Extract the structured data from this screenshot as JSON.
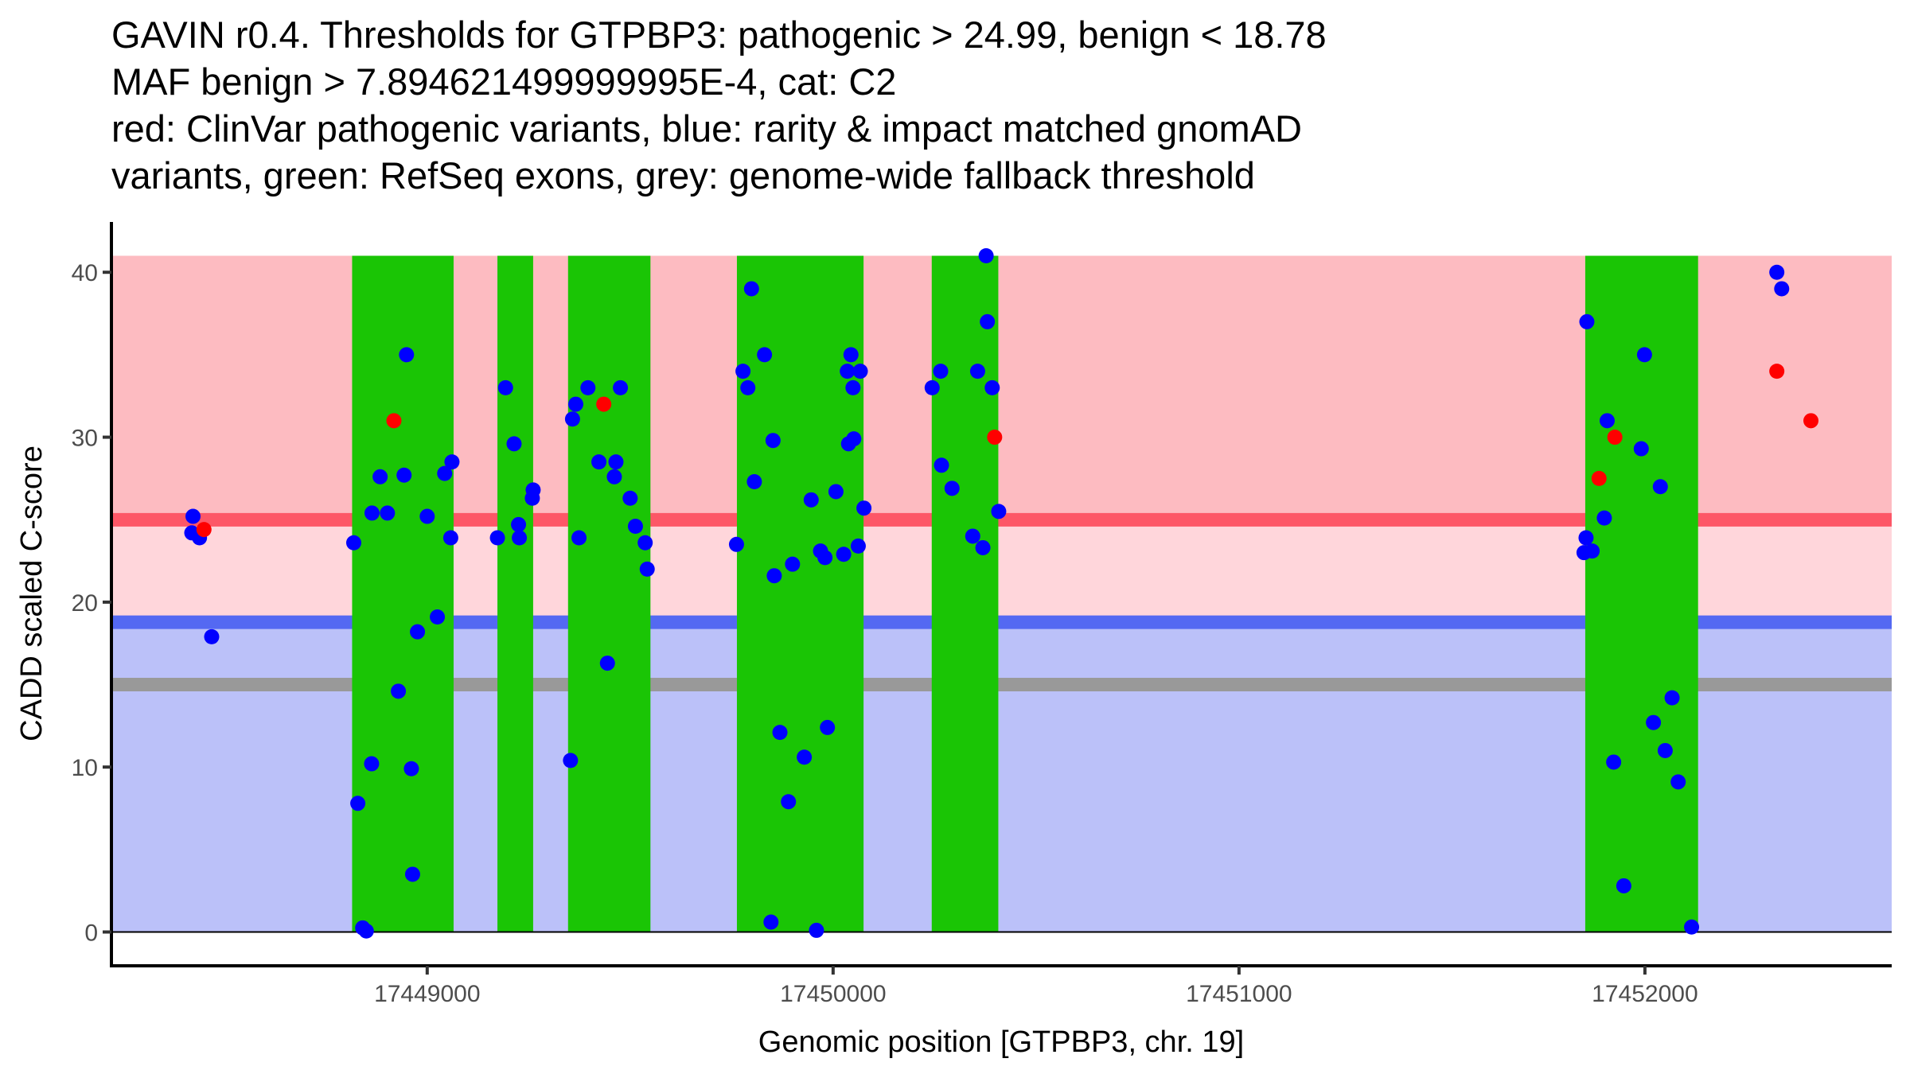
{
  "chart_data": {
    "type": "scatter",
    "title_lines": [
      "GAVIN r0.4. Thresholds for GTPBP3: pathogenic > 24.99, benign < 18.78",
      "MAF benign > 7.894621499999995E-4, cat: C2",
      "red: ClinVar pathogenic variants, blue: rarity & impact matched gnomAD",
      "variants, green: RefSeq exons, grey: genome-wide fallback threshold"
    ],
    "xlabel": "Genomic position [GTPBP3, chr. 19]",
    "ylabel": "CADD scaled C-score",
    "xlim": [
      17448222,
      17452608
    ],
    "ylim": [
      -2.05,
      43.05
    ],
    "x_ticks": [
      17449000,
      17450000,
      17451000,
      17452000
    ],
    "x_tick_labels": [
      "17449000",
      "17450000",
      "17451000",
      "17452000"
    ],
    "y_ticks": [
      0,
      10,
      20,
      30,
      40
    ],
    "y_tick_labels": [
      "0",
      "10",
      "20",
      "30",
      "40"
    ],
    "grid": false,
    "legend": "none",
    "thresholds": {
      "pathogenic": 24.99,
      "benign": 18.78,
      "genome_wide_fallback": 15,
      "band_max": 41,
      "band_min": 0
    },
    "colors": {
      "pathogenic_band": "#FDBBC1",
      "intermediate_band": "#FFD6DB",
      "benign_band": "#BBC1F9",
      "pathogenic_line": "#FD5767",
      "benign_line": "#5469F2",
      "fallback_line": "#999999",
      "exon": "#1AC505",
      "clinvar_point": "#FF0000",
      "gnomad_point": "#0000FF"
    },
    "exons": [
      {
        "start": 17448815,
        "end": 17449065
      },
      {
        "start": 17449173,
        "end": 17449261
      },
      {
        "start": 17449347,
        "end": 17449550
      },
      {
        "start": 17449763,
        "end": 17450075
      },
      {
        "start": 17450243,
        "end": 17450407
      },
      {
        "start": 17451853,
        "end": 17452131
      }
    ],
    "series": [
      {
        "name": "gnomAD (rarity & impact matched)",
        "color": "#0000FF",
        "points": [
          [
            17448423,
            25.2
          ],
          [
            17448420,
            24.2
          ],
          [
            17448439,
            23.9
          ],
          [
            17448469,
            17.9
          ],
          [
            17448819,
            23.6
          ],
          [
            17448829,
            7.8
          ],
          [
            17448841,
            0.25
          ],
          [
            17448850,
            0.06
          ],
          [
            17448863,
            10.2
          ],
          [
            17448864,
            25.4
          ],
          [
            17448884,
            27.6
          ],
          [
            17448902,
            25.4
          ],
          [
            17448929,
            14.6
          ],
          [
            17448943,
            27.7
          ],
          [
            17448949,
            35.0
          ],
          [
            17448961,
            9.9
          ],
          [
            17448964,
            3.5
          ],
          [
            17448976,
            18.2
          ],
          [
            17449000,
            25.2
          ],
          [
            17449025,
            19.1
          ],
          [
            17449043,
            27.8
          ],
          [
            17449061,
            28.5
          ],
          [
            17449058,
            23.9
          ],
          [
            17449173,
            23.9
          ],
          [
            17449193,
            33.0
          ],
          [
            17449214,
            29.6
          ],
          [
            17449225,
            24.7
          ],
          [
            17449227,
            23.9
          ],
          [
            17449261,
            26.8
          ],
          [
            17449259,
            26.3
          ],
          [
            17449353,
            10.4
          ],
          [
            17449358,
            31.1
          ],
          [
            17449366,
            32.0
          ],
          [
            17449374,
            23.9
          ],
          [
            17449396,
            33.0
          ],
          [
            17449423,
            28.5
          ],
          [
            17449444,
            16.3
          ],
          [
            17449461,
            27.6
          ],
          [
            17449465,
            28.5
          ],
          [
            17449476,
            33.0
          ],
          [
            17449500,
            26.3
          ],
          [
            17449513,
            24.6
          ],
          [
            17449537,
            23.6
          ],
          [
            17449542,
            22.0
          ],
          [
            17449762,
            23.5
          ],
          [
            17449778,
            34.0
          ],
          [
            17449790,
            33.0
          ],
          [
            17449799,
            39.0
          ],
          [
            17449806,
            27.3
          ],
          [
            17449831,
            35.0
          ],
          [
            17449847,
            0.6
          ],
          [
            17449852,
            29.8
          ],
          [
            17449855,
            21.6
          ],
          [
            17449869,
            12.1
          ],
          [
            17449890,
            7.9
          ],
          [
            17449900,
            22.3
          ],
          [
            17449929,
            10.6
          ],
          [
            17449946,
            26.2
          ],
          [
            17449959,
            0.1
          ],
          [
            17449969,
            23.1
          ],
          [
            17449980,
            22.7
          ],
          [
            17449986,
            12.4
          ],
          [
            17450007,
            26.7
          ],
          [
            17450026,
            22.9
          ],
          [
            17450035,
            34.0
          ],
          [
            17450038,
            29.6
          ],
          [
            17450044,
            35.0
          ],
          [
            17450049,
            33.0
          ],
          [
            17450051,
            29.9
          ],
          [
            17450062,
            23.4
          ],
          [
            17450067,
            34.0
          ],
          [
            17450076,
            25.7
          ],
          [
            17450244,
            33.0
          ],
          [
            17450265,
            34.0
          ],
          [
            17450267,
            28.3
          ],
          [
            17450293,
            26.9
          ],
          [
            17450344,
            24.0
          ],
          [
            17450356,
            34.0
          ],
          [
            17450369,
            23.3
          ],
          [
            17450377,
            41.0
          ],
          [
            17450380,
            37.0
          ],
          [
            17450392,
            33.0
          ],
          [
            17450408,
            25.5
          ],
          [
            17451850,
            23.0
          ],
          [
            17451855,
            23.9
          ],
          [
            17451857,
            37.0
          ],
          [
            17451870,
            23.1
          ],
          [
            17451900,
            25.1
          ],
          [
            17451907,
            31.0
          ],
          [
            17451923,
            10.3
          ],
          [
            17451948,
            2.8
          ],
          [
            17451991,
            29.3
          ],
          [
            17451999,
            35.0
          ],
          [
            17452021,
            12.7
          ],
          [
            17452038,
            27.0
          ],
          [
            17452050,
            11.0
          ],
          [
            17452067,
            14.2
          ],
          [
            17452082,
            9.1
          ],
          [
            17452115,
            0.3
          ],
          [
            17452325,
            40.0
          ],
          [
            17452337,
            39.0
          ]
        ]
      },
      {
        "name": "ClinVar pathogenic",
        "color": "#FF0000",
        "points": [
          [
            17448450,
            24.4
          ],
          [
            17448918,
            31.0
          ],
          [
            17449435,
            32.0
          ],
          [
            17450398,
            30.0
          ],
          [
            17451887,
            27.5
          ],
          [
            17451926,
            30.0
          ],
          [
            17452325,
            34.0
          ],
          [
            17452409,
            31.0
          ]
        ]
      }
    ]
  }
}
